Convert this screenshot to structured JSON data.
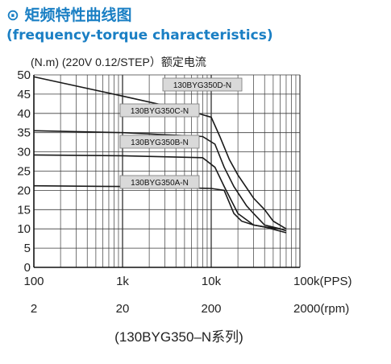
{
  "heading": {
    "icon": "circle-dot-icon",
    "zh": "矩频特性曲线图",
    "en": "(frequency-torque characteristics)"
  },
  "chart_data": {
    "type": "line",
    "annotation": "(N.m)  (220V 0.12/STEP）额定电流",
    "caption": "(130BYG350–N系列)",
    "x_scale": "log",
    "xlim_pps": [
      100,
      100000
    ],
    "ylim": [
      0,
      50
    ],
    "grid": true,
    "x_tick_labels": [
      "100",
      "1k",
      "10k",
      "100k(PPS)"
    ],
    "x2_tick_labels": [
      "2",
      "20",
      "200",
      "2000(rpm)"
    ],
    "y_ticks": [
      0,
      5,
      10,
      15,
      20,
      25,
      30,
      35,
      40,
      45,
      50
    ],
    "series": [
      {
        "name": "130BYG350D-N",
        "points": [
          [
            100,
            49.5
          ],
          [
            1000,
            44.5
          ],
          [
            6000,
            40.5
          ],
          [
            10000,
            39
          ],
          [
            12500,
            34
          ],
          [
            16000,
            28
          ],
          [
            20000,
            24
          ],
          [
            30000,
            18
          ],
          [
            40000,
            15
          ],
          [
            50000,
            12
          ],
          [
            70000,
            10
          ]
        ]
      },
      {
        "name": "130BYG350C-N",
        "points": [
          [
            100,
            35.5
          ],
          [
            1000,
            35
          ],
          [
            8000,
            34
          ],
          [
            11000,
            32
          ],
          [
            14000,
            26
          ],
          [
            18000,
            21
          ],
          [
            25000,
            16
          ],
          [
            30000,
            14
          ],
          [
            40000,
            11
          ],
          [
            60000,
            10
          ],
          [
            70000,
            9.5
          ]
        ]
      },
      {
        "name": "130BYG350B-N",
        "points": [
          [
            100,
            29.2
          ],
          [
            1000,
            29
          ],
          [
            8000,
            28.5
          ],
          [
            11000,
            26
          ],
          [
            14000,
            21
          ],
          [
            20000,
            14
          ],
          [
            30000,
            11
          ],
          [
            40000,
            10.5
          ],
          [
            60000,
            10
          ]
        ]
      },
      {
        "name": "130BYG350A-N",
        "points": [
          [
            100,
            21.2
          ],
          [
            1000,
            21
          ],
          [
            10000,
            20.5
          ],
          [
            14000,
            20
          ],
          [
            18000,
            14
          ],
          [
            22000,
            12
          ],
          [
            30000,
            11
          ],
          [
            40000,
            10.5
          ],
          [
            70000,
            9
          ]
        ]
      }
    ],
    "colors": {
      "line": "#1a1a1a",
      "grid": "#3a3a3a",
      "label_box": "#d9d9d9",
      "heading": "#1a7fc4"
    }
  }
}
